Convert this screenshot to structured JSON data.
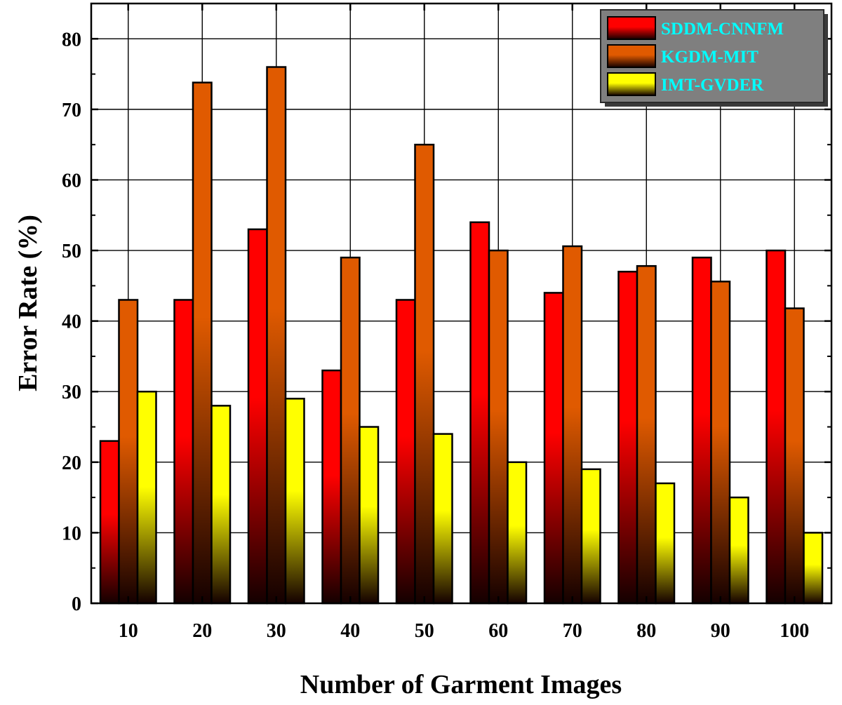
{
  "chart_data": {
    "type": "bar",
    "title": "",
    "xlabel": "Number of Garment Images",
    "ylabel": "Error Rate (%)",
    "categories": [
      "10",
      "20",
      "30",
      "40",
      "50",
      "60",
      "70",
      "80",
      "90",
      "100"
    ],
    "ylim": [
      0,
      85
    ],
    "yticks": [
      0,
      10,
      20,
      30,
      40,
      50,
      60,
      70,
      80
    ],
    "grid": true,
    "legend_position": "top-right",
    "series": [
      {
        "name": "SDDM-CNNFM",
        "color": "#ff0000",
        "values": [
          23,
          43,
          53,
          33,
          43,
          54,
          44,
          47,
          49,
          50
        ]
      },
      {
        "name": "KGDM-MIT",
        "color": "#e05a00",
        "values": [
          43,
          73.8,
          76,
          49,
          65,
          50,
          50.6,
          47.8,
          45.6,
          41.8
        ]
      },
      {
        "name": "IMT-GVDER",
        "color": "#ffff00",
        "values": [
          30,
          28,
          29,
          25,
          24,
          20,
          19,
          17,
          15,
          10
        ]
      }
    ],
    "legend_text_color": "#00ffff",
    "legend_background": "#808080"
  }
}
